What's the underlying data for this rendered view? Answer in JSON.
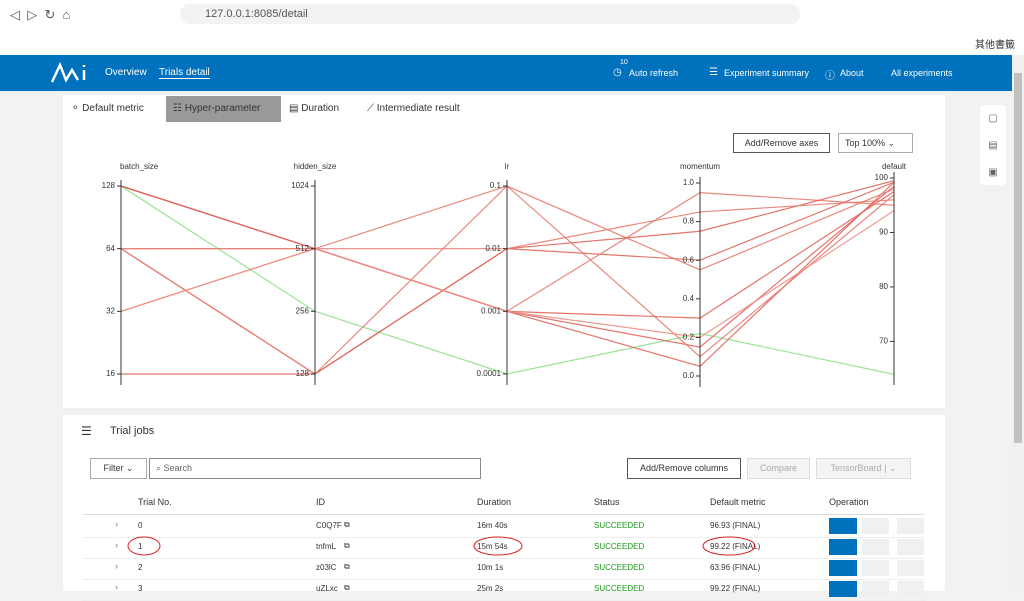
{
  "browser": {
    "url": "127.0.0.1:8085/detail",
    "bookmarks": "其他書籤"
  },
  "nav": {
    "links": [
      "Overview",
      "Trials detail"
    ],
    "refresh_count": "10",
    "auto_refresh": "Auto refresh",
    "experiment_summary": "Experiment summary",
    "about": "About",
    "all_experiments": "All experiments"
  },
  "tabs": [
    "Default metric",
    "Hyper-parameter",
    "Duration",
    "Intermediate result"
  ],
  "chart_controls": {
    "add_remove_axes": "Add/Remove axes",
    "top": "Top 100%"
  },
  "chart_data": {
    "type": "parallel",
    "axes": [
      {
        "name": "batch_size",
        "log": true,
        "lim": [
          16,
          128
        ],
        "ticks": [
          16,
          32,
          64,
          128
        ]
      },
      {
        "name": "hidden_size",
        "log": true,
        "lim": [
          128,
          1024
        ],
        "ticks": [
          128,
          256,
          512,
          1024
        ]
      },
      {
        "name": "lr",
        "log": true,
        "lim": [
          0.0001,
          0.1
        ],
        "ticks": [
          0.0001,
          0.001,
          0.01,
          0.1
        ]
      },
      {
        "name": "momentum",
        "log": false,
        "lim": [
          0,
          1
        ],
        "ticks": [
          {
            "value": 0,
            "label": "0.0"
          },
          0.2,
          0.4,
          0.6,
          0.8,
          {
            "value": 1,
            "label": "1.0"
          }
        ]
      },
      {
        "name": "default",
        "log": false,
        "lim": [
          62,
          100
        ],
        "ticks": [
          70,
          80,
          90,
          100
        ]
      }
    ],
    "lines": [
      {
        "color": "#8fe08a",
        "values": [
          128,
          256,
          0.0001,
          0.22,
          63.96
        ]
      },
      {
        "color": "#e0665c",
        "values": [
          128,
          512,
          0.001,
          0.05,
          99.22
        ]
      },
      {
        "color": "#e0665c",
        "values": [
          128,
          512,
          0.001,
          0.15,
          98.5
        ]
      },
      {
        "color": "#e0665c",
        "values": [
          128,
          512,
          0.001,
          0.3,
          97.5
        ]
      },
      {
        "color": "#e87b70",
        "values": [
          64,
          512,
          0.1,
          0.1,
          96.93
        ]
      },
      {
        "color": "#e0665c",
        "values": [
          64,
          128,
          0.01,
          0.6,
          99.22
        ]
      },
      {
        "color": "#e87b70",
        "values": [
          64,
          128,
          0.1,
          0.55,
          98
        ]
      },
      {
        "color": "#e87b70",
        "values": [
          32,
          512,
          0.001,
          0.95,
          95
        ]
      },
      {
        "color": "#e0665c",
        "values": [
          16,
          128,
          0.01,
          0.75,
          99.5
        ]
      },
      {
        "color": "#e87b70",
        "values": [
          64,
          512,
          0.01,
          0.85,
          96
        ]
      },
      {
        "color": "#ee8f85",
        "values": [
          32,
          512,
          0.001,
          0.2,
          94
        ]
      }
    ]
  },
  "trial_jobs": {
    "title": "Trial jobs",
    "filter": "Filter",
    "search_placeholder": "Search",
    "add_remove_columns": "Add/Remove columns",
    "compare": "Compare",
    "tensorboard": "TensorBoard",
    "columns": [
      "Trial No.",
      "ID",
      "Duration",
      "Status",
      "Default metric",
      "Operation"
    ],
    "rows": [
      [
        "0",
        "C0Q7F",
        "16m 40s",
        "SUCCEEDED",
        "96.93 (FINAL)"
      ],
      [
        "1",
        "tnfmL",
        "15m 54s",
        "SUCCEEDED",
        "99.22 (FINAL)"
      ],
      [
        "2",
        "z03lC",
        "10m 1s",
        "SUCCEEDED",
        "63.96 (FINAL)"
      ],
      [
        "3",
        "uZLxc",
        "25m 2s",
        "SUCCEEDED",
        "99.22 (FINAL)"
      ]
    ]
  }
}
